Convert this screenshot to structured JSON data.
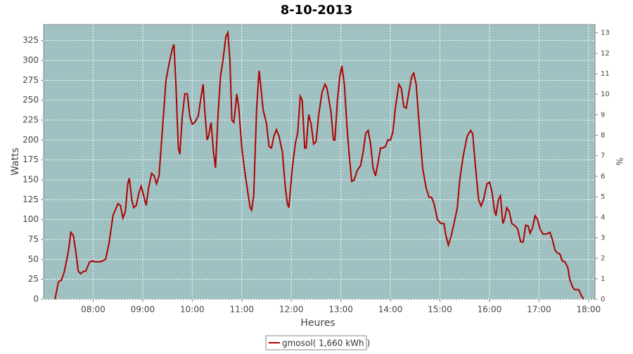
{
  "chart_data": {
    "type": "line",
    "title": "8-10-2013",
    "x_label": "Heures",
    "y_label": "Watts",
    "y2_label": "%",
    "background": "#9fc1c1",
    "grid": true,
    "xlim": [
      7.0,
      18.13
    ],
    "ylim": [
      0,
      345
    ],
    "y2lim": [
      0,
      13.4
    ],
    "xticks": [
      {
        "value": 8,
        "label": "08:00"
      },
      {
        "value": 9,
        "label": "09:00"
      },
      {
        "value": 10,
        "label": "10:00"
      },
      {
        "value": 11,
        "label": "11:00"
      },
      {
        "value": 12,
        "label": "12:00"
      },
      {
        "value": 13,
        "label": "13:00"
      },
      {
        "value": 14,
        "label": "14:00"
      },
      {
        "value": 15,
        "label": "15:00"
      },
      {
        "value": 16,
        "label": "16:00"
      },
      {
        "value": 17,
        "label": "17:00"
      },
      {
        "value": 18,
        "label": "18:00"
      }
    ],
    "yticks": [
      0,
      25,
      50,
      75,
      100,
      125,
      150,
      175,
      200,
      225,
      250,
      275,
      300,
      325
    ],
    "y2ticks": [
      0,
      1,
      2,
      3,
      4,
      5,
      6,
      7,
      8,
      9,
      10,
      11,
      12,
      13
    ],
    "x": [
      7.23,
      7.3,
      7.36,
      7.42,
      7.5,
      7.55,
      7.6,
      7.65,
      7.7,
      7.75,
      7.8,
      7.85,
      7.92,
      7.97,
      8.05,
      8.15,
      8.25,
      8.32,
      8.4,
      8.5,
      8.55,
      8.6,
      8.65,
      8.7,
      8.73,
      8.78,
      8.82,
      8.87,
      8.93,
      8.97,
      9.02,
      9.07,
      9.12,
      9.18,
      9.23,
      9.28,
      9.33,
      9.4,
      9.47,
      9.53,
      9.6,
      9.63,
      9.67,
      9.72,
      9.75,
      9.8,
      9.85,
      9.9,
      9.95,
      10.0,
      10.05,
      10.12,
      10.18,
      10.22,
      10.25,
      10.3,
      10.33,
      10.38,
      10.43,
      10.47,
      10.52,
      10.57,
      10.62,
      10.68,
      10.72,
      10.76,
      10.8,
      10.84,
      10.9,
      10.94,
      11.0,
      11.05,
      11.12,
      11.17,
      11.2,
      11.24,
      11.3,
      11.35,
      11.38,
      11.43,
      11.5,
      11.55,
      11.6,
      11.65,
      11.7,
      11.75,
      11.82,
      11.88,
      11.92,
      11.95,
      12.02,
      12.08,
      12.13,
      12.18,
      12.22,
      12.27,
      12.3,
      12.35,
      12.4,
      12.45,
      12.5,
      12.55,
      12.62,
      12.68,
      12.72,
      12.8,
      12.85,
      12.88,
      12.93,
      12.98,
      13.02,
      13.07,
      13.12,
      13.17,
      13.22,
      13.27,
      13.33,
      13.4,
      13.45,
      13.5,
      13.55,
      13.6,
      13.65,
      13.7,
      13.75,
      13.8,
      13.85,
      13.9,
      13.95,
      14.0,
      14.05,
      14.1,
      14.17,
      14.22,
      14.27,
      14.32,
      14.38,
      14.43,
      14.47,
      14.52,
      14.58,
      14.65,
      14.72,
      14.78,
      14.83,
      14.88,
      14.95,
      15.02,
      15.08,
      15.12,
      15.17,
      15.23,
      15.3,
      15.35,
      15.4,
      15.47,
      15.55,
      15.62,
      15.66,
      15.72,
      15.78,
      15.83,
      15.88,
      15.95,
      16.0,
      16.05,
      16.1,
      16.13,
      16.18,
      16.22,
      16.27,
      16.3,
      16.35,
      16.4,
      16.45,
      16.52,
      16.57,
      16.63,
      16.68,
      16.73,
      16.78,
      16.82,
      16.87,
      16.92,
      16.97,
      17.02,
      17.08,
      17.15,
      17.22,
      17.27,
      17.32,
      17.37,
      17.42,
      17.47,
      17.52,
      17.58,
      17.62,
      17.68,
      17.72,
      17.8,
      17.85,
      17.9
    ],
    "series": [
      {
        "name": "gmosol( 1,660 kWh )",
        "color": "#b00000",
        "values": [
          0,
          22,
          24,
          35,
          60,
          84,
          80,
          60,
          35,
          32,
          35,
          35,
          46,
          48,
          47,
          47,
          50,
          70,
          105,
          120,
          118,
          102,
          110,
          145,
          152,
          125,
          115,
          118,
          135,
          142,
          130,
          118,
          140,
          158,
          155,
          145,
          155,
          215,
          275,
          295,
          315,
          320,
          270,
          190,
          182,
          230,
          258,
          258,
          230,
          220,
          222,
          230,
          255,
          270,
          240,
          200,
          205,
          222,
          185,
          165,
          230,
          280,
          300,
          330,
          335,
          300,
          225,
          222,
          258,
          240,
          190,
          165,
          135,
          115,
          112,
          130,
          240,
          287,
          270,
          238,
          220,
          192,
          190,
          205,
          213,
          205,
          185,
          140,
          120,
          115,
          165,
          195,
          210,
          255,
          250,
          190,
          190,
          232,
          220,
          195,
          198,
          230,
          260,
          270,
          265,
          235,
          200,
          200,
          250,
          280,
          293,
          270,
          220,
          180,
          148,
          150,
          162,
          168,
          185,
          208,
          212,
          195,
          165,
          155,
          172,
          190,
          190,
          192,
          200,
          200,
          210,
          240,
          270,
          265,
          242,
          240,
          262,
          280,
          284,
          270,
          220,
          165,
          140,
          128,
          128,
          120,
          100,
          95,
          95,
          80,
          68,
          80,
          100,
          115,
          150,
          180,
          205,
          212,
          208,
          165,
          125,
          117,
          125,
          145,
          147,
          135,
          112,
          105,
          125,
          130,
          95,
          100,
          115,
          110,
          95,
          92,
          88,
          72,
          72,
          93,
          92,
          83,
          90,
          105,
          100,
          88,
          82,
          82,
          84,
          75,
          62,
          58,
          57,
          48,
          47,
          40,
          25,
          15,
          12,
          12,
          5,
          0
        ]
      }
    ]
  }
}
